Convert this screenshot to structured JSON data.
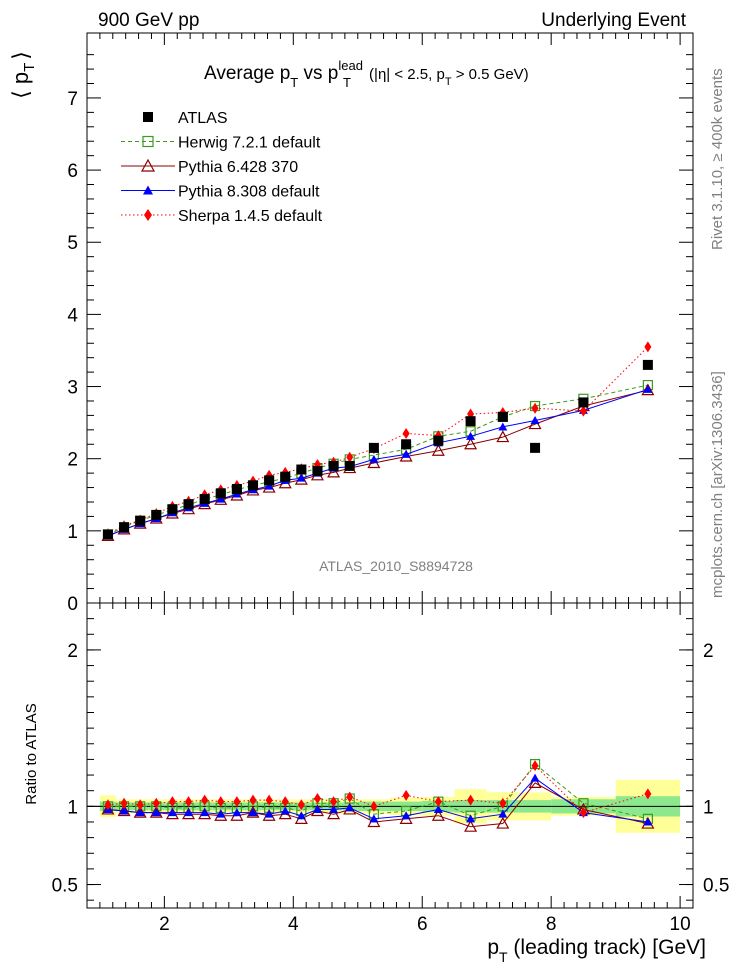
{
  "header": {
    "left": "900 GeV pp",
    "right": "Underlying Event"
  },
  "side_labels": {
    "rivet": "Rivet 3.1.10, ≥ 400k events",
    "mcplots": "mcplots.cern.ch [arXiv:1306.3436]"
  },
  "watermark": "ATLAS_2010_S8894728",
  "chart_data": [
    {
      "type": "scatter",
      "title": "Average p_T vs p_T^lead (|η| < 2.5, p_T > 0.5 GeV)",
      "title_parts": {
        "main": "Average p",
        "sub1": "T",
        "vs": " vs p",
        "sup": "lead",
        "sub2": "T",
        "cuts_a": " (|η| < 2.5, p",
        "cuts_sub": "T",
        "cuts_b": " > 0.5 GeV)"
      },
      "ylabel": "⟨ p_T ⟩",
      "ylabel_parts": {
        "open": "⟨ p",
        "sub": "T",
        "close": "⟩"
      },
      "xlabel": "p_T (leading track) [GeV]",
      "xlim": [
        0.8,
        10.2
      ],
      "ylim": [
        0,
        7.9
      ],
      "yticks": [
        0,
        1,
        2,
        3,
        4,
        5,
        6,
        7
      ],
      "xticks": [
        2,
        4,
        6,
        8,
        10
      ],
      "legend_position": "top-left",
      "x": [
        1.125,
        1.375,
        1.625,
        1.875,
        2.125,
        2.375,
        2.625,
        2.875,
        3.125,
        3.375,
        3.625,
        3.875,
        4.125,
        4.375,
        4.625,
        4.875,
        5.25,
        5.75,
        6.25,
        6.75,
        7.25,
        7.75,
        8.5,
        9.5
      ],
      "series": [
        {
          "name": "ATLAS",
          "marker": "filled-square",
          "color": "#000000",
          "values": [
            0.95,
            1.05,
            1.14,
            1.22,
            1.3,
            1.37,
            1.44,
            1.52,
            1.58,
            1.63,
            1.7,
            1.75,
            1.85,
            1.83,
            1.9,
            1.9,
            2.15,
            2.2,
            2.25,
            2.52,
            2.58,
            2.15,
            2.78,
            3.3
          ]
        },
        {
          "name": "Herwig 7.2.1 default",
          "marker": "open-square",
          "color": "#3d9a1e",
          "values": [
            0.95,
            1.05,
            1.14,
            1.22,
            1.29,
            1.36,
            1.44,
            1.5,
            1.57,
            1.63,
            1.68,
            1.73,
            1.8,
            1.87,
            1.93,
            1.99,
            2.05,
            2.13,
            2.31,
            2.38,
            2.58,
            2.73,
            2.83,
            3.02
          ]
        },
        {
          "name": "Pythia 6.428 370",
          "marker": "open-triangle",
          "color": "#8b0000",
          "values": [
            0.93,
            1.02,
            1.1,
            1.17,
            1.24,
            1.3,
            1.37,
            1.43,
            1.49,
            1.56,
            1.6,
            1.66,
            1.71,
            1.77,
            1.81,
            1.87,
            1.94,
            2.03,
            2.11,
            2.2,
            2.3,
            2.48,
            2.73,
            2.95
          ]
        },
        {
          "name": "Pythia 8.308 default",
          "marker": "filled-triangle",
          "color": "#0000ff",
          "values": [
            0.93,
            1.02,
            1.1,
            1.17,
            1.25,
            1.32,
            1.38,
            1.44,
            1.51,
            1.57,
            1.62,
            1.7,
            1.73,
            1.8,
            1.87,
            1.89,
            1.99,
            2.06,
            2.22,
            2.31,
            2.44,
            2.53,
            2.67,
            2.96
          ]
        },
        {
          "name": "Sherpa 1.4.5 default",
          "marker": "filled-diamond",
          "color": "#ff0000",
          "values": [
            0.96,
            1.07,
            1.15,
            1.24,
            1.34,
            1.41,
            1.5,
            1.57,
            1.63,
            1.69,
            1.77,
            1.81,
            1.86,
            1.92,
            1.95,
            2.02,
            2.14,
            2.35,
            2.32,
            2.62,
            2.64,
            2.7,
            2.66,
            3.55
          ]
        }
      ]
    },
    {
      "type": "scatter",
      "title": "",
      "ylabel": "Ratio to ATLAS",
      "xlabel": "p_T (leading track) [GeV]",
      "xlim": [
        0.8,
        10.2
      ],
      "ylim": [
        0.35,
        2.3
      ],
      "yticks": [
        0.5,
        1,
        2
      ],
      "ytick_labels": [
        "0.5",
        "1",
        "2"
      ],
      "xticks": [
        2,
        4,
        6,
        8,
        10
      ],
      "band_edges": [
        1.0,
        1.25,
        1.5,
        1.75,
        2.0,
        2.25,
        2.5,
        2.75,
        3.0,
        3.25,
        3.5,
        3.75,
        4.0,
        4.25,
        4.5,
        4.75,
        5.0,
        5.5,
        6.0,
        6.5,
        7.0,
        7.5,
        8.0,
        9.0,
        10.0
      ],
      "stat_band": [
        0.03,
        0.025,
        0.025,
        0.025,
        0.025,
        0.025,
        0.025,
        0.025,
        0.025,
        0.025,
        0.025,
        0.025,
        0.025,
        0.025,
        0.025,
        0.025,
        0.03,
        0.03,
        0.035,
        0.04,
        0.04,
        0.04,
        0.045,
        0.065
      ],
      "total_band": [
        0.07,
        0.045,
        0.045,
        0.045,
        0.045,
        0.045,
        0.045,
        0.045,
        0.045,
        0.045,
        0.045,
        0.045,
        0.045,
        0.045,
        0.045,
        0.045,
        0.045,
        0.055,
        0.06,
        0.11,
        0.09,
        0.09,
        0.06,
        0.17
      ],
      "series": [
        {
          "name": "Herwig 7.2.1 default",
          "values": [
            1.0,
            1.0,
            1.0,
            1.0,
            0.99,
            0.99,
            1.0,
            0.99,
            0.99,
            1.0,
            0.99,
            0.99,
            0.97,
            1.02,
            1.02,
            1.05,
            0.95,
            0.97,
            1.03,
            0.94,
            1.0,
            1.27,
            1.02,
            0.92
          ]
        },
        {
          "name": "Pythia 6.428 370",
          "values": [
            0.98,
            0.97,
            0.96,
            0.96,
            0.95,
            0.95,
            0.95,
            0.94,
            0.94,
            0.96,
            0.94,
            0.95,
            0.92,
            0.97,
            0.95,
            0.98,
            0.9,
            0.92,
            0.94,
            0.87,
            0.89,
            1.15,
            0.98,
            0.89
          ]
        },
        {
          "name": "Pythia 8.308 default",
          "values": [
            0.98,
            0.97,
            0.96,
            0.96,
            0.96,
            0.96,
            0.96,
            0.95,
            0.96,
            0.96,
            0.95,
            0.97,
            0.94,
            0.98,
            0.98,
            0.99,
            0.92,
            0.94,
            0.98,
            0.92,
            0.95,
            1.18,
            0.96,
            0.9
          ]
        },
        {
          "name": "Sherpa 1.4.5 default",
          "values": [
            1.01,
            1.02,
            1.01,
            1.02,
            1.03,
            1.03,
            1.04,
            1.03,
            1.03,
            1.04,
            1.04,
            1.03,
            1.01,
            1.05,
            1.03,
            1.06,
            1.0,
            1.07,
            1.03,
            1.04,
            1.02,
            1.26,
            0.96,
            1.08
          ]
        }
      ]
    }
  ]
}
